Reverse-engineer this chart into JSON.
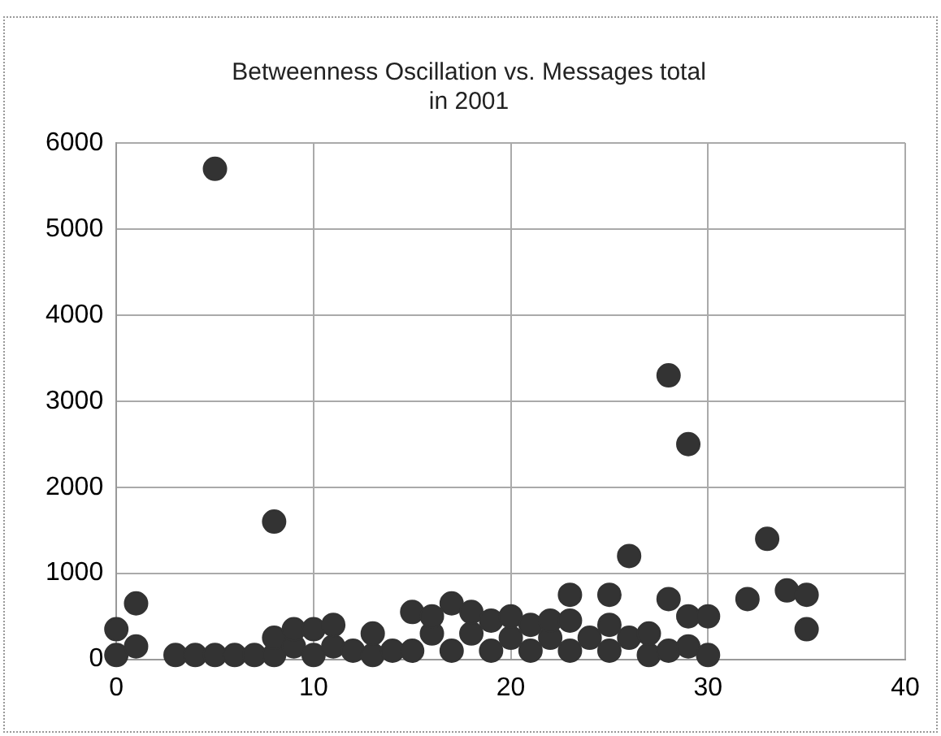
{
  "chart_data": {
    "type": "scatter",
    "title": [
      "Betweenness Oscillation vs. Messages total",
      "in 2001"
    ],
    "series": [
      {
        "color": "#333333",
        "x": [
          0,
          0,
          1,
          1,
          3,
          4,
          5,
          6,
          7,
          8,
          8,
          9,
          9,
          10,
          10,
          11,
          11,
          12,
          13,
          13,
          14,
          15,
          15,
          16,
          16,
          17,
          17,
          18,
          18,
          19,
          19,
          20,
          20,
          21,
          21,
          22,
          22,
          23,
          23,
          24,
          25,
          25,
          26,
          27,
          27,
          28,
          28,
          29,
          29,
          30,
          30,
          5,
          8,
          28,
          29,
          26,
          33,
          23,
          25,
          32,
          34,
          35,
          35
        ],
        "values": [
          50,
          350,
          150,
          650,
          50,
          50,
          50,
          50,
          50,
          50,
          250,
          150,
          350,
          50,
          350,
          150,
          400,
          100,
          50,
          300,
          100,
          100,
          550,
          300,
          500,
          100,
          650,
          300,
          550,
          100,
          450,
          250,
          500,
          100,
          400,
          250,
          450,
          100,
          450,
          250,
          100,
          400,
          250,
          50,
          300,
          100,
          700,
          150,
          500,
          50,
          500,
          5700,
          1600,
          3300,
          2500,
          1200,
          1400,
          750,
          750,
          700,
          800,
          750,
          350
        ]
      }
    ],
    "xlim": [
      0,
      40
    ],
    "xticks": [
      0,
      10,
      20,
      30,
      40
    ],
    "ylim": [
      0,
      6000
    ],
    "yticks": [
      0,
      1000,
      2000,
      3000,
      4000,
      5000,
      6000
    ],
    "grid": true,
    "legend": false,
    "marker": "circle"
  }
}
